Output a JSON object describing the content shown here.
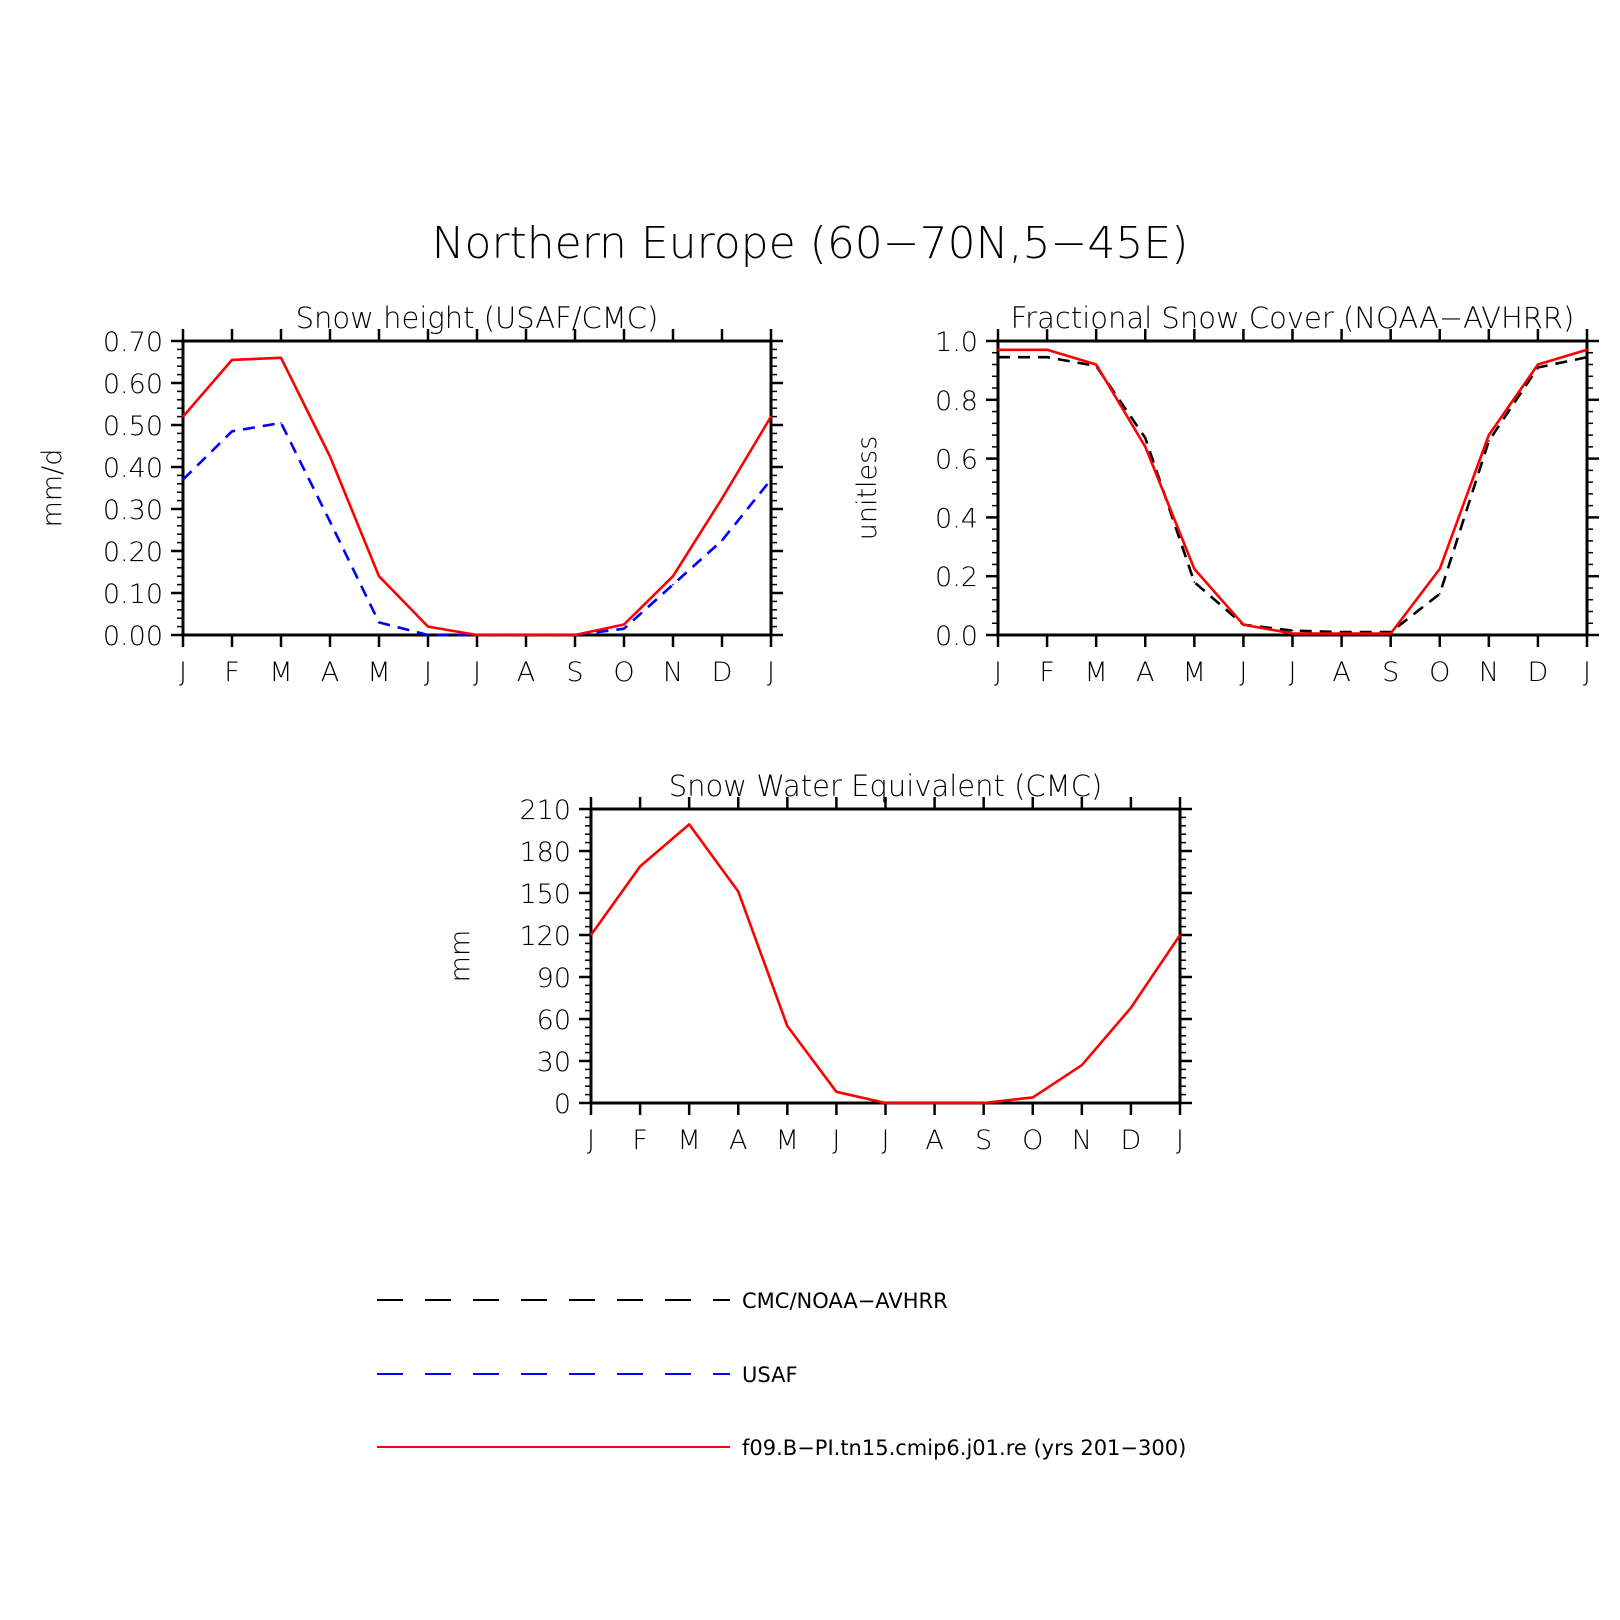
{
  "figure": {
    "title": "Northern Europe (60−70N,5−45E)"
  },
  "colors": {
    "obs": "#000000",
    "usaf": "#0000ff",
    "model": "#ff0000"
  },
  "chart_data": [
    {
      "type": "line",
      "title": "Snow height (USAF/CMC)",
      "xlabel": "",
      "ylabel": "mm/d",
      "categories": [
        "J",
        "F",
        "M",
        "A",
        "M",
        "J",
        "J",
        "A",
        "S",
        "O",
        "N",
        "D",
        "J"
      ],
      "ylim": [
        0,
        0.7
      ],
      "yticks": [
        "0.00",
        "0.10",
        "0.20",
        "0.30",
        "0.40",
        "0.50",
        "0.60",
        "0.70"
      ],
      "grid": false,
      "series": [
        {
          "name": "CMC/NOAA−AVHRR",
          "style": "dashed",
          "color_key": "obs",
          "values": [
            0,
            0,
            0,
            0,
            0,
            0,
            0,
            0,
            0,
            0,
            0,
            0,
            0
          ]
        },
        {
          "name": "USAF",
          "style": "dashed",
          "color_key": "usaf",
          "values": [
            0.37,
            0.485,
            0.505,
            0.27,
            0.03,
            0.0,
            0.0,
            0.0,
            0.0,
            0.015,
            0.12,
            0.225,
            0.37
          ]
        },
        {
          "name": "f09.B−PI.tn15.cmip6.j01.re (yrs 201−300)",
          "style": "solid",
          "color_key": "model",
          "values": [
            0.52,
            0.655,
            0.66,
            0.425,
            0.14,
            0.02,
            0.0,
            0.0,
            0.0,
            0.025,
            0.14,
            0.325,
            0.52
          ]
        }
      ]
    },
    {
      "type": "line",
      "title": "Fractional Snow Cover (NOAA−AVHRR)",
      "xlabel": "",
      "ylabel": "unitless",
      "categories": [
        "J",
        "F",
        "M",
        "A",
        "M",
        "J",
        "J",
        "A",
        "S",
        "O",
        "N",
        "D",
        "J"
      ],
      "ylim": [
        0,
        1.0
      ],
      "yticks": [
        "0.0",
        "0.2",
        "0.4",
        "0.6",
        "0.8",
        "1.0"
      ],
      "grid": false,
      "series": [
        {
          "name": "CMC/NOAA−AVHRR",
          "style": "dashed",
          "color_key": "obs",
          "values": [
            0.945,
            0.945,
            0.915,
            0.67,
            0.18,
            0.035,
            0.015,
            0.01,
            0.01,
            0.14,
            0.66,
            0.91,
            0.945
          ]
        },
        {
          "name": "f09.B−PI.tn15.cmip6.j01.re (yrs 201−300)",
          "style": "solid",
          "color_key": "model",
          "values": [
            0.97,
            0.97,
            0.92,
            0.64,
            0.225,
            0.035,
            0.005,
            0.005,
            0.005,
            0.225,
            0.68,
            0.92,
            0.97
          ]
        }
      ]
    },
    {
      "type": "line",
      "title": "Snow Water Equivalent (CMC)",
      "xlabel": "",
      "ylabel": "mm",
      "categories": [
        "J",
        "F",
        "M",
        "A",
        "M",
        "J",
        "J",
        "A",
        "S",
        "O",
        "N",
        "D",
        "J"
      ],
      "ylim": [
        0,
        210
      ],
      "yticks": [
        "0",
        "30",
        "60",
        "90",
        "120",
        "150",
        "180",
        "210"
      ],
      "grid": false,
      "series": [
        {
          "name": "CMC/NOAA−AVHRR",
          "style": "dashed",
          "color_key": "obs",
          "values": [
            0,
            0,
            0,
            0,
            0,
            0,
            0,
            0,
            0,
            0,
            0,
            0,
            0
          ]
        },
        {
          "name": "f09.B−PI.tn15.cmip6.j01.re (yrs 201−300)",
          "style": "solid",
          "color_key": "model",
          "values": [
            120,
            169,
            199,
            151,
            55,
            8,
            0,
            0,
            0,
            4,
            27,
            68,
            120
          ]
        }
      ]
    }
  ],
  "legend": {
    "placement": "bottom",
    "entries": [
      {
        "label": "CMC/NOAA−AVHRR",
        "style": "dashed",
        "color_key": "obs"
      },
      {
        "label": "USAF",
        "style": "dashed",
        "color_key": "usaf"
      },
      {
        "label": "f09.B−PI.tn15.cmip6.j01.re (yrs 201−300)",
        "style": "solid",
        "color_key": "model"
      }
    ]
  }
}
